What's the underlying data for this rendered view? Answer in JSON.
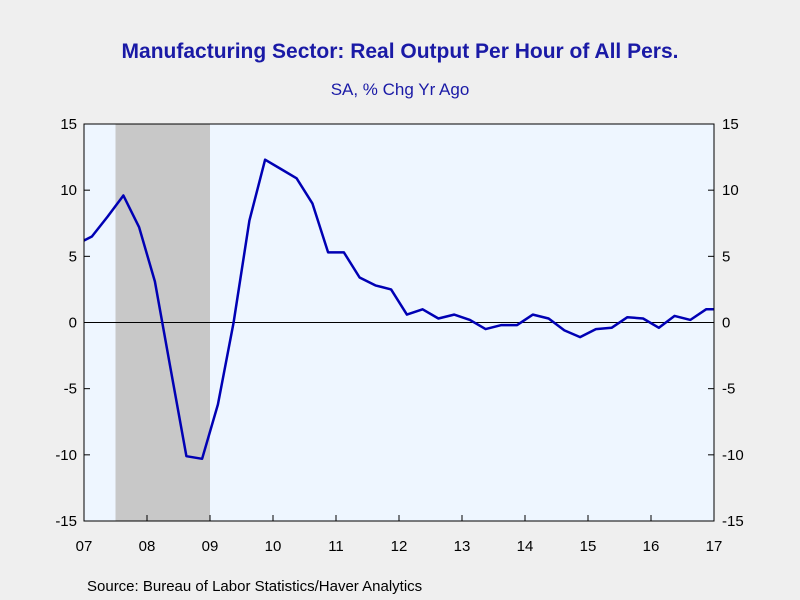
{
  "chart_data": {
    "type": "line",
    "title": "Manufacturing Sector: Real Output Per Hour of All Pers.",
    "subtitle": "SA, % Chg Yr Ago",
    "source": "Source:  Bureau of Labor Statistics/Haver Analytics",
    "x_tick_labels": [
      "07",
      "08",
      "09",
      "10",
      "11",
      "12",
      "13",
      "14",
      "15",
      "16",
      "17"
    ],
    "y_tick_labels": [
      "15",
      "10",
      "5",
      "0",
      "-5",
      "-10",
      "-15"
    ],
    "y_ticks": [
      15,
      10,
      5,
      0,
      -5,
      -10,
      -15
    ],
    "xlim": [
      2007.0,
      2017.0
    ],
    "ylim": [
      -15,
      15
    ],
    "recession_shading": [
      2007.5,
      2009.0
    ],
    "zero_line": true,
    "colors": {
      "plot_bg": "#eef6ff",
      "line": "#0000b4",
      "recession": "#c8c8c8",
      "page_bg": "#efefef",
      "title": "#1a1aa6"
    },
    "series": [
      {
        "x": [
          2007.0,
          2007.125,
          2007.375,
          2007.625,
          2007.875,
          2008.125,
          2008.375,
          2008.625,
          2008.875,
          2009.125,
          2009.375,
          2009.625,
          2009.875,
          2010.125,
          2010.375,
          2010.625,
          2010.875,
          2011.125,
          2011.375,
          2011.625,
          2011.875,
          2012.125,
          2012.375,
          2012.625,
          2012.875,
          2013.125,
          2013.375,
          2013.625,
          2013.875,
          2014.125,
          2014.375,
          2014.625,
          2014.875,
          2015.125,
          2015.375,
          2015.625,
          2015.875,
          2016.125,
          2016.375,
          2016.625,
          2016.875,
          2017.0
        ],
        "values": [
          6.2,
          6.5,
          8.0,
          9.6,
          7.2,
          3.1,
          -3.5,
          -10.1,
          -10.3,
          -6.2,
          0.0,
          7.7,
          12.3,
          11.6,
          10.9,
          9.0,
          5.3,
          5.3,
          3.4,
          2.8,
          2.5,
          0.6,
          1.0,
          0.3,
          0.6,
          0.2,
          -0.5,
          -0.2,
          -0.2,
          0.6,
          0.3,
          -0.6,
          -1.1,
          -0.5,
          -0.4,
          0.4,
          0.3,
          -0.4,
          0.5,
          0.2,
          1.0,
          1.0
        ]
      }
    ]
  }
}
